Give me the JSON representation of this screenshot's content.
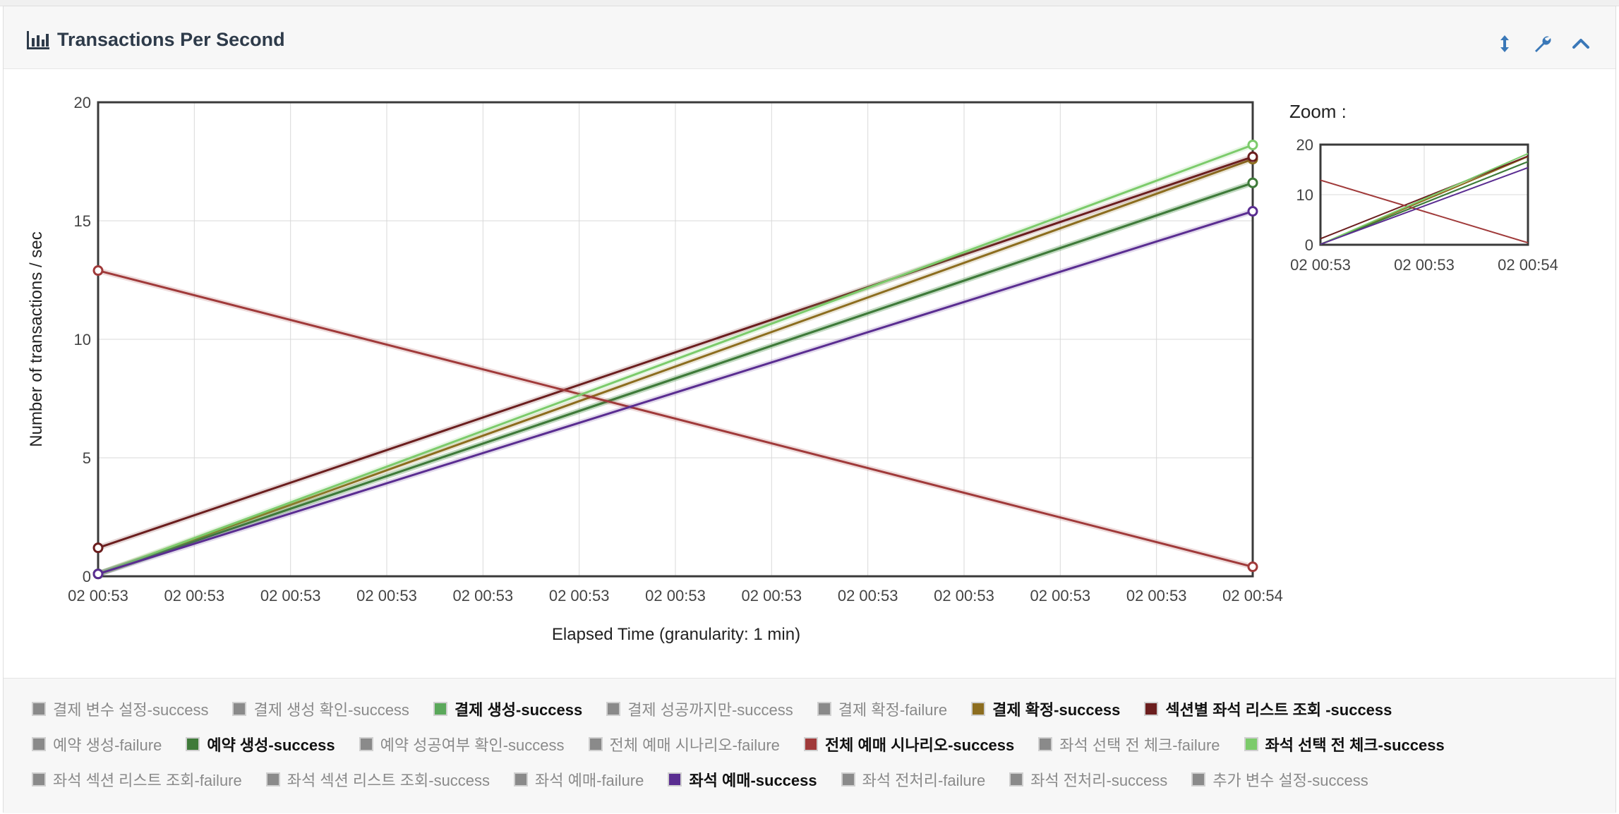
{
  "panel": {
    "title": "Transactions Per Second",
    "title_icon": "bar-chart-icon",
    "tools": [
      {
        "name": "resize-vertical-icon"
      },
      {
        "name": "wrench-icon"
      },
      {
        "name": "chevron-up-icon"
      }
    ]
  },
  "chart_data": [
    {
      "type": "line",
      "title": "",
      "ylabel": "Number of transactions / sec",
      "xlabel": "Elapsed Time (granularity: 1 min)",
      "ylim": [
        0,
        20
      ],
      "yticks": [
        0,
        5,
        10,
        15,
        20
      ],
      "xtick_labels": [
        "02 00:53",
        "02 00:53",
        "02 00:53",
        "02 00:53",
        "02 00:53",
        "02 00:53",
        "02 00:53",
        "02 00:53",
        "02 00:53",
        "02 00:53",
        "02 00:53",
        "02 00:53",
        "02 00:54"
      ],
      "grid": true,
      "series": [
        {
          "name": "결제 생성-success",
          "color": "#5aa85a",
          "values": [
            0.1,
            16.6
          ]
        },
        {
          "name": "결제 확정-success",
          "color": "#8c6d1f",
          "values": [
            0.1,
            17.6
          ]
        },
        {
          "name": "섹션별 좌석 리스트 조회 -success",
          "color": "#6b1e1e",
          "values": [
            1.2,
            17.7
          ]
        },
        {
          "name": "예약 생성-success",
          "color": "#3f7a3a",
          "values": [
            0.1,
            16.6
          ]
        },
        {
          "name": "전체 예매 시나리오-success",
          "color": "#a03a3a",
          "values": [
            12.9,
            0.4
          ]
        },
        {
          "name": "좌석 선택 전 체크-success",
          "color": "#7ccb6b",
          "values": [
            0.1,
            18.2
          ]
        },
        {
          "name": "좌석 예매-success",
          "color": "#5a2d91",
          "values": [
            0.1,
            15.4
          ]
        }
      ]
    },
    {
      "type": "line",
      "title": "Zoom :",
      "ylim": [
        0,
        20
      ],
      "yticks": [
        0,
        10,
        20
      ],
      "xtick_labels": [
        "02 00:53",
        "02 00:53",
        "02 00:54"
      ]
    }
  ],
  "legend": {
    "rows": [
      [
        {
          "label": "결제 변수 설정-success",
          "active": false
        },
        {
          "label": "결제 생성 확인-success",
          "active": false
        },
        {
          "label": "결제 생성-success",
          "active": true,
          "color": "#5aa85a"
        },
        {
          "label": "결제 성공까지만-success",
          "active": false
        },
        {
          "label": "결제 확정-failure",
          "active": false
        },
        {
          "label": "결제 확정-success",
          "active": true,
          "color": "#8c6d1f"
        },
        {
          "label": "섹션별 좌석 리스트 조회 -success",
          "active": true,
          "color": "#6b1e1e"
        }
      ],
      [
        {
          "label": "예약 생성-failure",
          "active": false
        },
        {
          "label": "예약 생성-success",
          "active": true,
          "color": "#3f7a3a"
        },
        {
          "label": "예약 성공여부 확인-success",
          "active": false
        },
        {
          "label": "전체 예매 시나리오-failure",
          "active": false
        },
        {
          "label": "전체 예매 시나리오-success",
          "active": true,
          "color": "#a03a3a"
        },
        {
          "label": "좌석 선택 전 체크-failure",
          "active": false
        },
        {
          "label": "좌석 선택 전 체크-success",
          "active": true,
          "color": "#7ccb6b"
        }
      ],
      [
        {
          "label": "좌석 섹션 리스트 조회-failure",
          "active": false
        },
        {
          "label": "좌석 섹션 리스트 조회-success",
          "active": false
        },
        {
          "label": "좌석 예매-failure",
          "active": false
        },
        {
          "label": "좌석 예매-success",
          "active": true,
          "color": "#5a2d91"
        },
        {
          "label": "좌석 전처리-failure",
          "active": false
        },
        {
          "label": "좌석 전처리-success",
          "active": false
        },
        {
          "label": "추가 변수 설정-success",
          "active": false
        }
      ]
    ]
  }
}
